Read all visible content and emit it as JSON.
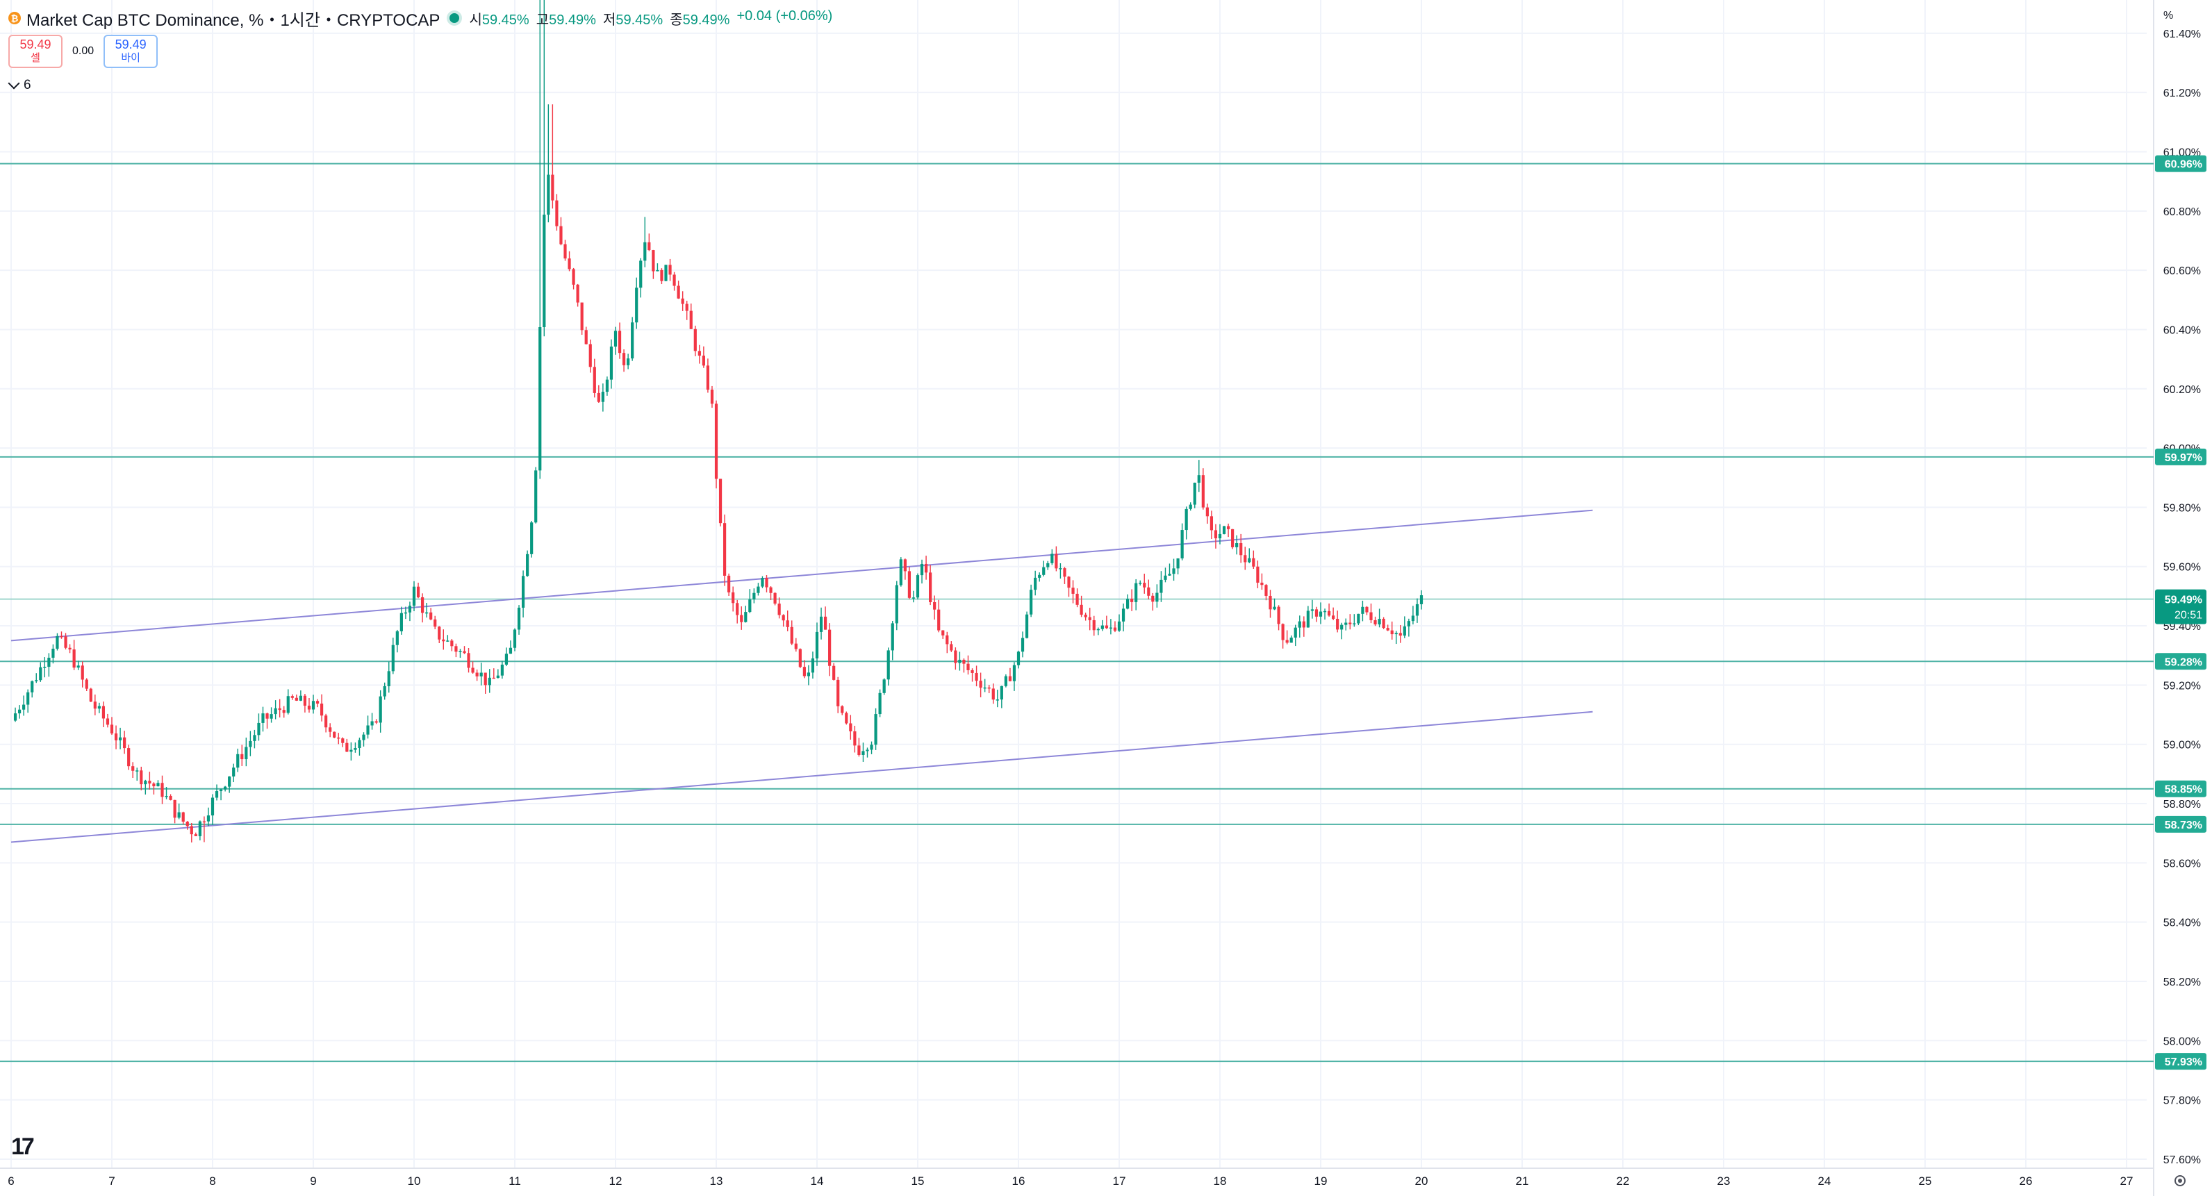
{
  "header": {
    "symbol_icon": "bitcoin-icon",
    "title": "Market Cap BTC Dominance, %・1시간・CRYPTOCAP",
    "ohlc": [
      {
        "label": "시",
        "value": "59.45%"
      },
      {
        "label": "고",
        "value": "59.49%"
      },
      {
        "label": "저",
        "value": "59.45%"
      },
      {
        "label": "종",
        "value": "59.49%"
      }
    ],
    "change": "+0.04 (+0.06%)"
  },
  "quote": {
    "sell_price": "59.49",
    "sell_label": "셀",
    "spread": "0.00",
    "buy_price": "59.49",
    "buy_label": "바이"
  },
  "indicators_toggle": "6",
  "axis_unit": "%",
  "chart_data": {
    "type": "candlestick",
    "timeframe": "1 hour",
    "ylim": [
      57.5,
      61.5
    ],
    "x_domain": [
      6.0,
      27.5
    ],
    "y_ticks": [
      "61.40%",
      "61.20%",
      "61.00%",
      "60.80%",
      "60.60%",
      "60.40%",
      "60.20%",
      "60.00%",
      "59.80%",
      "59.60%",
      "59.40%",
      "59.20%",
      "59.00%",
      "58.80%",
      "58.60%",
      "58.40%",
      "58.20%",
      "58.00%",
      "57.80%",
      "57.60%"
    ],
    "x_ticks": [
      "6",
      "7",
      "8",
      "9",
      "10",
      "11",
      "12",
      "13",
      "14",
      "15",
      "16",
      "17",
      "18",
      "19",
      "20",
      "21",
      "22",
      "23",
      "24",
      "25",
      "26",
      "27"
    ],
    "horizontal_lines": [
      {
        "value": 60.96,
        "label": "60.96%"
      },
      {
        "value": 59.97,
        "label": "59.97%"
      },
      {
        "value": 59.28,
        "label": "59.28%"
      },
      {
        "value": 58.85,
        "label": "58.85%"
      },
      {
        "value": 58.73,
        "label": "58.73%"
      },
      {
        "value": 57.93,
        "label": "57.93%"
      }
    ],
    "current_price": {
      "value": 59.49,
      "label": "59.49%",
      "countdown": "20:51"
    },
    "trend_lines": [
      {
        "x1": 6.0,
        "y1": 59.35,
        "x2": 21.7,
        "y2": 59.79
      },
      {
        "x1": 6.0,
        "y1": 58.67,
        "x2": 21.7,
        "y2": 59.11
      }
    ],
    "anchors": [
      [
        6.0,
        59.08
      ],
      [
        6.25,
        59.23
      ],
      [
        6.45,
        59.36
      ],
      [
        6.6,
        59.3
      ],
      [
        6.8,
        59.14
      ],
      [
        7.0,
        59.05
      ],
      [
        7.25,
        58.9
      ],
      [
        7.5,
        58.84
      ],
      [
        7.65,
        58.76
      ],
      [
        7.82,
        58.7
      ],
      [
        7.95,
        58.78
      ],
      [
        8.2,
        58.92
      ],
      [
        8.5,
        59.08
      ],
      [
        8.8,
        59.15
      ],
      [
        9.05,
        59.12
      ],
      [
        9.3,
        58.98
      ],
      [
        9.6,
        59.06
      ],
      [
        9.85,
        59.4
      ],
      [
        10.0,
        59.52
      ],
      [
        10.2,
        59.38
      ],
      [
        10.5,
        59.3
      ],
      [
        10.75,
        59.2
      ],
      [
        10.95,
        59.3
      ],
      [
        11.1,
        59.6
      ],
      [
        11.2,
        59.85
      ],
      [
        11.28,
        60.75
      ],
      [
        11.33,
        60.92
      ],
      [
        11.45,
        60.7
      ],
      [
        11.6,
        60.52
      ],
      [
        11.72,
        60.32
      ],
      [
        11.85,
        60.12
      ],
      [
        12.0,
        60.4
      ],
      [
        12.1,
        60.25
      ],
      [
        12.22,
        60.6
      ],
      [
        12.3,
        60.72
      ],
      [
        12.4,
        60.58
      ],
      [
        12.55,
        60.6
      ],
      [
        12.7,
        60.45
      ],
      [
        12.85,
        60.28
      ],
      [
        12.95,
        60.18
      ],
      [
        13.02,
        59.8
      ],
      [
        13.1,
        59.52
      ],
      [
        13.25,
        59.4
      ],
      [
        13.45,
        59.58
      ],
      [
        13.6,
        59.48
      ],
      [
        13.75,
        59.34
      ],
      [
        13.9,
        59.2
      ],
      [
        14.05,
        59.45
      ],
      [
        14.2,
        59.12
      ],
      [
        14.4,
        58.98
      ],
      [
        14.55,
        59.02
      ],
      [
        14.7,
        59.3
      ],
      [
        14.82,
        59.62
      ],
      [
        14.95,
        59.48
      ],
      [
        15.05,
        59.62
      ],
      [
        15.2,
        59.38
      ],
      [
        15.4,
        59.28
      ],
      [
        15.6,
        59.22
      ],
      [
        15.8,
        59.15
      ],
      [
        16.0,
        59.3
      ],
      [
        16.15,
        59.55
      ],
      [
        16.3,
        59.64
      ],
      [
        16.5,
        59.52
      ],
      [
        16.7,
        59.42
      ],
      [
        16.9,
        59.38
      ],
      [
        17.05,
        59.45
      ],
      [
        17.2,
        59.55
      ],
      [
        17.35,
        59.5
      ],
      [
        17.55,
        59.6
      ],
      [
        17.7,
        59.82
      ],
      [
        17.78,
        59.92
      ],
      [
        17.9,
        59.7
      ],
      [
        18.05,
        59.72
      ],
      [
        18.2,
        59.65
      ],
      [
        18.35,
        59.58
      ],
      [
        18.5,
        59.48
      ],
      [
        18.65,
        59.35
      ],
      [
        18.85,
        59.42
      ],
      [
        19.0,
        59.46
      ],
      [
        19.2,
        59.38
      ],
      [
        19.4,
        59.45
      ],
      [
        19.6,
        59.42
      ],
      [
        19.8,
        59.36
      ],
      [
        20.0,
        59.49
      ]
    ]
  }
}
